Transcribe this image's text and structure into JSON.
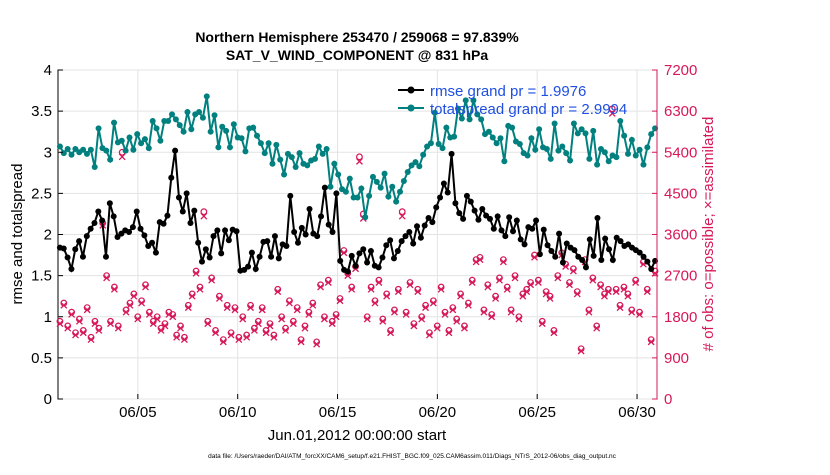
{
  "chart_data": {
    "type": "line",
    "title_line1": "Northern Hemisphere 253470 / 259068 = 97.839%",
    "title_line2": "SAT_V_WIND_COMPONENT @ 831 hPa",
    "xlabel": "Jun.01,2012 00:00:00 start",
    "ylabel_left": "rmse and totalspread",
    "ylabel_right": "# of obs: o=possible; ×=assimilated",
    "footer": "data file: /Users/raeder/DAI/ATM_forcXX/CAM6_setup/f.e21.FHIST_BGC.f09_025.CAM6assim.011/Diags_NTrS_2012-06/obs_diag_output.nc",
    "x_range_days": [
      1,
      31
    ],
    "ylim_left": [
      0,
      4
    ],
    "ylim_right": [
      0,
      7200
    ],
    "x_ticks": [
      {
        "day": 5,
        "label": "06/05"
      },
      {
        "day": 10,
        "label": "06/10"
      },
      {
        "day": 15,
        "label": "06/15"
      },
      {
        "day": 20,
        "label": "06/20"
      },
      {
        "day": 25,
        "label": "06/25"
      },
      {
        "day": 30,
        "label": "06/30"
      }
    ],
    "y_ticks_left": [
      {
        "value": 0,
        "label": "0"
      },
      {
        "value": 0.5,
        "label": "0.5"
      },
      {
        "value": 1,
        "label": "1"
      },
      {
        "value": 1.5,
        "label": "1.5"
      },
      {
        "value": 2,
        "label": "2"
      },
      {
        "value": 2.5,
        "label": "2.5"
      },
      {
        "value": 3,
        "label": "3"
      },
      {
        "value": 3.5,
        "label": "3.5"
      },
      {
        "value": 4,
        "label": "4"
      }
    ],
    "y_ticks_right": [
      {
        "value": 0,
        "label": "0"
      },
      {
        "value": 900,
        "label": "900"
      },
      {
        "value": 1800,
        "label": "1800"
      },
      {
        "value": 2700,
        "label": "2700"
      },
      {
        "value": 3600,
        "label": "3600"
      },
      {
        "value": 4500,
        "label": "4500"
      },
      {
        "value": 5400,
        "label": "5400"
      },
      {
        "value": 6300,
        "label": "6300"
      },
      {
        "value": 7200,
        "label": "7200"
      }
    ],
    "legend_position": "top-right",
    "colors": {
      "rmse": "#000000",
      "spread": "#00807f",
      "obs": "#d6185a",
      "legend_text": "#1f4fe0",
      "axis": "#000000"
    },
    "series": [
      {
        "name": "rmse grand pr = 1.9976",
        "axis": "left",
        "values": [
          1.84,
          1.83,
          1.72,
          1.58,
          1.82,
          1.92,
          1.73,
          1.98,
          2.07,
          2.14,
          2.28,
          2.17,
          1.73,
          2.38,
          2.22,
          1.97,
          2.01,
          2.05,
          2.03,
          2.09,
          2.28,
          2.07,
          1.99,
          1.86,
          1.9,
          1.78,
          2.15,
          2.13,
          2.23,
          2.69,
          3.02,
          2.45,
          2.28,
          2.5,
          2.14,
          2.29,
          1.9,
          1.67,
          1.82,
          1.72,
          1.98,
          2.05,
          1.77,
          2.05,
          1.93,
          2.06,
          2.04,
          1.56,
          1.57,
          1.61,
          1.78,
          1.58,
          1.73,
          1.91,
          1.92,
          1.73,
          1.98,
          1.71,
          1.88,
          1.86,
          2.47,
          2.03,
          1.9,
          2.08,
          2.0,
          2.31,
          2.01,
          1.98,
          2.22,
          2.57,
          2.12,
          2.03,
          2.5,
          1.68,
          1.57,
          1.55,
          1.74,
          1.62,
          1.77,
          1.82,
          1.66,
          1.8,
          1.62,
          1.6,
          1.72,
          1.87,
          1.93,
          1.71,
          1.8,
          1.92,
          1.98,
          2.03,
          1.89,
          2.1,
          1.96,
          2.11,
          2.2,
          2.15,
          2.33,
          2.45,
          2.62,
          2.51,
          2.98,
          2.38,
          2.26,
          2.19,
          2.47,
          2.4,
          2.29,
          2.18,
          2.31,
          2.23,
          2.19,
          2.07,
          2.22,
          2.05,
          1.98,
          2.21,
          2.04,
          2.17,
          1.94,
          1.88,
          2.09,
          2.07,
          2.17,
          1.76,
          2.06,
          1.87,
          1.8,
          1.73,
          2.01,
          1.66,
          1.89,
          1.84,
          1.81,
          1.73,
          1.69,
          1.6,
          1.94,
          1.74,
          2.2,
          1.69,
          1.95,
          1.82,
          1.69,
          1.96,
          1.92,
          1.86,
          1.88,
          1.84,
          1.81,
          1.78,
          1.73,
          1.67,
          1.58,
          1.68
        ]
      },
      {
        "name": "totalspread grand pr = 2.9994",
        "axis": "left",
        "values": [
          3.07,
          2.99,
          3.04,
          2.97,
          3.04,
          3.0,
          3.03,
          2.98,
          3.03,
          2.82,
          3.29,
          3.05,
          3.02,
          2.91,
          3.36,
          3.12,
          3.14,
          3.02,
          3.18,
          3.03,
          3.22,
          3.11,
          3.16,
          3.05,
          3.38,
          3.29,
          3.14,
          3.38,
          3.38,
          3.46,
          3.4,
          3.33,
          3.25,
          3.49,
          3.28,
          3.46,
          3.49,
          3.42,
          3.68,
          3.25,
          3.45,
          3.06,
          3.31,
          3.26,
          3.06,
          3.34,
          3.18,
          3.17,
          3.01,
          3.29,
          3.3,
          3.2,
          3.11,
          2.99,
          3.11,
          2.86,
          3.09,
          2.91,
          2.73,
          2.98,
          2.94,
          2.82,
          2.99,
          2.86,
          2.84,
          2.9,
          2.92,
          3.07,
          2.98,
          3.04,
          2.58,
          2.86,
          2.73,
          2.55,
          2.52,
          2.68,
          2.45,
          2.45,
          2.56,
          2.21,
          2.47,
          2.7,
          2.64,
          2.57,
          2.74,
          2.46,
          2.58,
          2.4,
          2.52,
          2.65,
          2.76,
          2.84,
          2.88,
          2.83,
          2.97,
          3.07,
          3.11,
          3.48,
          3.1,
          3.05,
          3.3,
          3.18,
          3.19,
          3.53,
          3.41,
          3.63,
          3.4,
          3.63,
          3.46,
          3.4,
          3.22,
          3.25,
          3.18,
          3.11,
          3.17,
          2.89,
          3.32,
          3.3,
          3.13,
          3.1,
          2.99,
          2.96,
          3.17,
          3.03,
          3.28,
          3.06,
          3.04,
          2.92,
          3.35,
          3.02,
          3.07,
          2.99,
          2.9,
          3.35,
          3.23,
          3.28,
          3.23,
          2.92,
          3.26,
          2.85,
          3.04,
          3.0,
          2.89,
          2.96,
          2.94,
          3.38,
          3.2,
          2.98,
          3.15,
          2.96,
          3.03,
          2.85,
          3.06,
          3.22,
          3.29
        ]
      },
      {
        "name": "possible",
        "axis": "right",
        "marker": "o",
        "values": [
          1700,
          2100,
          1600,
          1900,
          1450,
          1750,
          1500,
          2000,
          1350,
          1700,
          1550,
          3850,
          2700,
          1700,
          2450,
          1600,
          5400,
          1950,
          2100,
          2300,
          1800,
          2150,
          2500,
          1900,
          1700,
          1800,
          1550,
          1650,
          1900,
          1850,
          1400,
          1600,
          1350,
          2050,
          2300,
          2800,
          2450,
          4100,
          1700,
          2650,
          1500,
          2250,
          1300,
          2050,
          1450,
          2000,
          1350,
          1800,
          1400,
          2050,
          1550,
          1700,
          2000,
          1500,
          1650,
          1400,
          2400,
          1800,
          1550,
          2150,
          1700,
          2000,
          1300,
          1600,
          1900,
          2100,
          1250,
          2500,
          1800,
          2600,
          1700,
          1850,
          2200,
          3250,
          2750,
          2450,
          2900,
          5300,
          4050,
          1800,
          2450,
          2150,
          2600,
          1750,
          2300,
          1500,
          1950,
          2400,
          4100,
          1900,
          2550,
          1650,
          2400,
          1800,
          2050,
          1450,
          2150,
          1600,
          2450,
          1900,
          1500,
          2000,
          1750,
          2300,
          1600,
          2100,
          2600,
          3050,
          3100,
          1950,
          2500,
          1850,
          2250,
          2650,
          3050,
          2450,
          1950,
          2700,
          1800,
          2300,
          2400,
          2550,
          3150,
          2600,
          1700,
          2350,
          2250,
          1500,
          2700,
          3200,
          2950,
          2550,
          2850,
          2350,
          1100,
          3050,
          1950,
          2650,
          1600,
          2500,
          2300,
          2400,
          6350,
          2400,
          2050,
          2450,
          2300,
          1950,
          2600,
          1900,
          3000,
          2400,
          1300,
          2800
        ]
      },
      {
        "name": "assimilated",
        "axis": "right",
        "marker": "x",
        "values": [
          1650,
          2050,
          1550,
          1850,
          1400,
          1700,
          1450,
          1950,
          1300,
          1650,
          1500,
          3800,
          2650,
          1650,
          2400,
          1550,
          5300,
          1900,
          2050,
          2250,
          1750,
          2100,
          2450,
          1850,
          1650,
          1750,
          1500,
          1600,
          1850,
          1800,
          1350,
          1550,
          1300,
          2000,
          2250,
          2750,
          2400,
          4000,
          1650,
          2600,
          1450,
          2200,
          1250,
          2000,
          1400,
          1950,
          1300,
          1750,
          1350,
          2000,
          1500,
          1650,
          1950,
          1450,
          1600,
          1350,
          2350,
          1750,
          1500,
          2100,
          1650,
          1950,
          1250,
          1550,
          1850,
          2050,
          1200,
          2450,
          1750,
          2550,
          1650,
          1800,
          2150,
          3200,
          2700,
          2400,
          2850,
          5200,
          3950,
          1750,
          2400,
          2100,
          2550,
          1700,
          2250,
          1450,
          1900,
          2350,
          4000,
          1850,
          2500,
          1600,
          2350,
          1750,
          2000,
          1400,
          2100,
          1550,
          2400,
          1850,
          1450,
          1950,
          1700,
          2250,
          1550,
          2050,
          2550,
          3000,
          3050,
          1900,
          2450,
          1800,
          2200,
          2600,
          3000,
          2400,
          1900,
          2650,
          1750,
          2250,
          2350,
          2500,
          3100,
          2550,
          1650,
          2300,
          2200,
          1450,
          2650,
          3150,
          2900,
          2500,
          2800,
          2300,
          1050,
          3000,
          1900,
          2600,
          1550,
          2450,
          2250,
          2350,
          6250,
          2350,
          2000,
          2400,
          2250,
          1900,
          2550,
          1850,
          2950,
          2350,
          1250,
          2750
        ]
      }
    ]
  }
}
